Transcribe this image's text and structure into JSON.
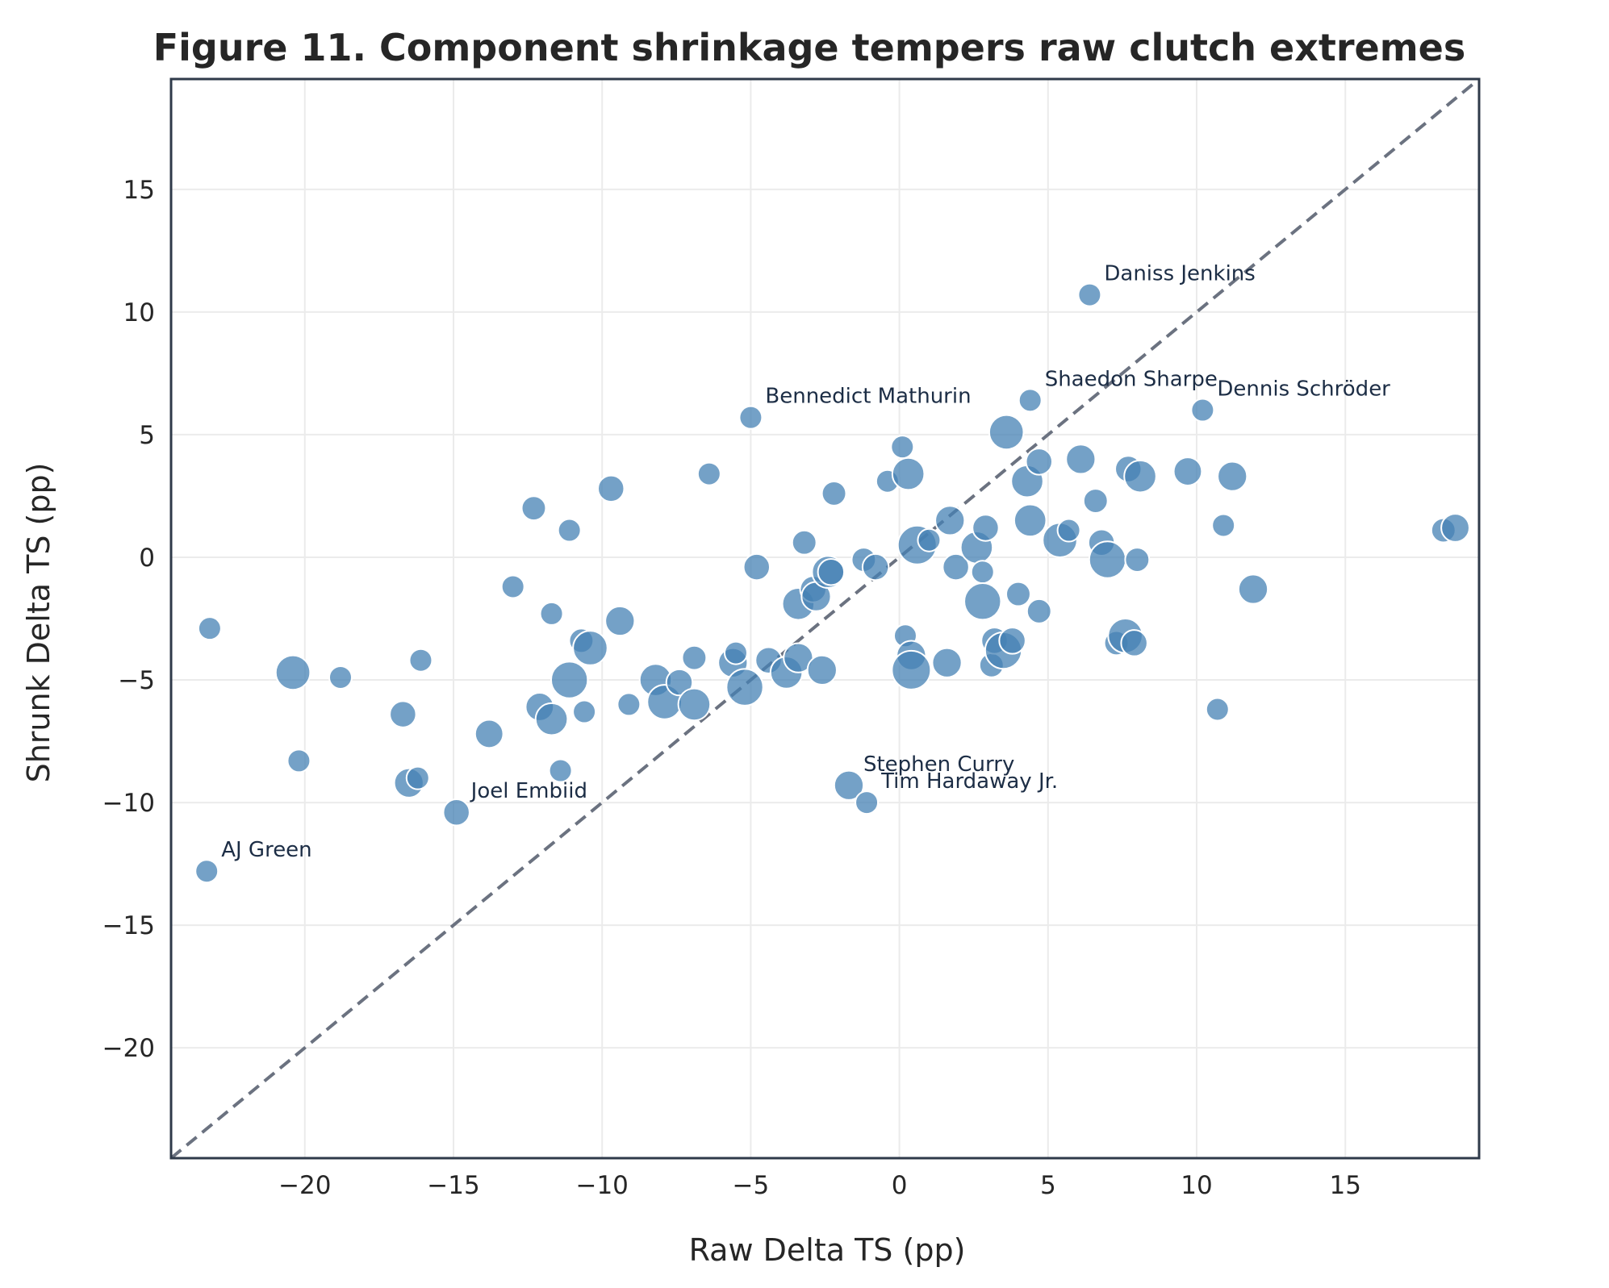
{
  "chart_data": {
    "type": "scatter",
    "title": "Figure 11. Component shrinkage tempers raw clutch extremes",
    "xlabel": "Raw Delta TS (pp)",
    "ylabel": "Shrunk Delta TS (pp)",
    "xlim": [
      -24.5,
      19.5
    ],
    "ylim": [
      -24.5,
      19.5
    ],
    "xticks": [
      -20,
      -15,
      -10,
      -5,
      0,
      5,
      10,
      15
    ],
    "yticks": [
      -20,
      -15,
      -10,
      -5,
      0,
      5,
      10,
      15
    ],
    "grid": true,
    "reference_line": "y = x",
    "points": [
      {
        "x": -23.3,
        "y": -12.8,
        "s": 1,
        "label": "AJ Green"
      },
      {
        "x": -23.2,
        "y": -2.9,
        "s": 1
      },
      {
        "x": -20.4,
        "y": -4.7,
        "s": 3
      },
      {
        "x": -20.2,
        "y": -8.3,
        "s": 1
      },
      {
        "x": -18.8,
        "y": -4.9,
        "s": 1
      },
      {
        "x": -16.7,
        "y": -6.4,
        "s": 1.5
      },
      {
        "x": -16.5,
        "y": -9.2,
        "s": 2
      },
      {
        "x": -16.2,
        "y": -9.0,
        "s": 1
      },
      {
        "x": -16.1,
        "y": -4.2,
        "s": 1
      },
      {
        "x": -14.9,
        "y": -10.4,
        "s": 1.5,
        "label": "Joel Embiid"
      },
      {
        "x": -13.8,
        "y": -7.2,
        "s": 1.8
      },
      {
        "x": -13.0,
        "y": -1.2,
        "s": 1
      },
      {
        "x": -12.3,
        "y": 2.0,
        "s": 1.2
      },
      {
        "x": -12.1,
        "y": -6.1,
        "s": 1.8
      },
      {
        "x": -11.7,
        "y": -6.6,
        "s": 2.5
      },
      {
        "x": -11.7,
        "y": -2.3,
        "s": 1
      },
      {
        "x": -11.4,
        "y": -8.7,
        "s": 1
      },
      {
        "x": -11.1,
        "y": 1.1,
        "s": 1
      },
      {
        "x": -11.1,
        "y": -5.0,
        "s": 3.5
      },
      {
        "x": -10.7,
        "y": -3.4,
        "s": 1.2
      },
      {
        "x": -10.6,
        "y": -6.3,
        "s": 1
      },
      {
        "x": -10.4,
        "y": -3.7,
        "s": 3
      },
      {
        "x": -9.7,
        "y": 2.8,
        "s": 1.5
      },
      {
        "x": -9.4,
        "y": -2.6,
        "s": 2
      },
      {
        "x": -9.1,
        "y": -6.0,
        "s": 1
      },
      {
        "x": -8.2,
        "y": -5.0,
        "s": 2.5
      },
      {
        "x": -7.9,
        "y": -5.9,
        "s": 3
      },
      {
        "x": -7.4,
        "y": -5.1,
        "s": 1.5
      },
      {
        "x": -6.9,
        "y": -6.0,
        "s": 2.5
      },
      {
        "x": -6.9,
        "y": -4.1,
        "s": 1.2
      },
      {
        "x": -6.4,
        "y": 3.4,
        "s": 1
      },
      {
        "x": -5.6,
        "y": -4.3,
        "s": 2
      },
      {
        "x": -5.5,
        "y": -3.9,
        "s": 1
      },
      {
        "x": -5.2,
        "y": -5.3,
        "s": 3.5
      },
      {
        "x": -5.0,
        "y": 5.7,
        "s": 1,
        "label": "Bennedict Mathurin"
      },
      {
        "x": -4.8,
        "y": -0.4,
        "s": 1.5
      },
      {
        "x": -4.4,
        "y": -4.2,
        "s": 1.5
      },
      {
        "x": -3.8,
        "y": -4.7,
        "s": 2.5
      },
      {
        "x": -3.4,
        "y": -1.9,
        "s": 2.5
      },
      {
        "x": -3.4,
        "y": -4.1,
        "s": 2
      },
      {
        "x": -3.2,
        "y": 0.6,
        "s": 1.2
      },
      {
        "x": -2.9,
        "y": -1.3,
        "s": 1.5
      },
      {
        "x": -2.8,
        "y": -1.6,
        "s": 2
      },
      {
        "x": -2.6,
        "y": -4.6,
        "s": 2
      },
      {
        "x": -2.4,
        "y": -0.6,
        "s": 2.5
      },
      {
        "x": -2.3,
        "y": -0.6,
        "s": 1.5
      },
      {
        "x": -2.2,
        "y": 2.6,
        "s": 1.2
      },
      {
        "x": -1.7,
        "y": -9.3,
        "s": 2,
        "label": "Stephen Curry"
      },
      {
        "x": -1.2,
        "y": -0.1,
        "s": 1.2
      },
      {
        "x": -1.1,
        "y": -10.0,
        "s": 1,
        "label": "Tim Hardaway Jr."
      },
      {
        "x": -0.8,
        "y": -0.4,
        "s": 1.5
      },
      {
        "x": -0.4,
        "y": 3.1,
        "s": 1
      },
      {
        "x": 0.1,
        "y": 4.5,
        "s": 1
      },
      {
        "x": 0.2,
        "y": -3.2,
        "s": 1
      },
      {
        "x": 0.3,
        "y": 3.4,
        "s": 2.5
      },
      {
        "x": 0.4,
        "y": -4.0,
        "s": 2
      },
      {
        "x": 0.4,
        "y": -4.6,
        "s": 4
      },
      {
        "x": 0.6,
        "y": 0.5,
        "s": 4
      },
      {
        "x": 1.0,
        "y": 0.7,
        "s": 1
      },
      {
        "x": 1.6,
        "y": -4.3,
        "s": 2
      },
      {
        "x": 1.7,
        "y": 1.5,
        "s": 2
      },
      {
        "x": 1.9,
        "y": -0.4,
        "s": 1.5
      },
      {
        "x": 2.6,
        "y": 0.4,
        "s": 2.5
      },
      {
        "x": 2.8,
        "y": -0.6,
        "s": 1
      },
      {
        "x": 2.8,
        "y": -1.8,
        "s": 3.5
      },
      {
        "x": 2.9,
        "y": 1.2,
        "s": 1.5
      },
      {
        "x": 3.1,
        "y": -4.4,
        "s": 1.2
      },
      {
        "x": 3.2,
        "y": -3.4,
        "s": 1.5
      },
      {
        "x": 3.5,
        "y": -3.8,
        "s": 3.5
      },
      {
        "x": 3.6,
        "y": 5.1,
        "s": 3
      },
      {
        "x": 3.8,
        "y": -3.4,
        "s": 1.5
      },
      {
        "x": 4.0,
        "y": -1.5,
        "s": 1.2
      },
      {
        "x": 4.3,
        "y": 3.1,
        "s": 2.5
      },
      {
        "x": 4.4,
        "y": 6.4,
        "s": 1,
        "label": "Shaedon Sharpe"
      },
      {
        "x": 4.4,
        "y": 1.5,
        "s": 2.5
      },
      {
        "x": 4.7,
        "y": 3.9,
        "s": 1.5
      },
      {
        "x": 4.7,
        "y": -2.2,
        "s": 1.2
      },
      {
        "x": 5.4,
        "y": 0.7,
        "s": 3
      },
      {
        "x": 5.7,
        "y": 1.1,
        "s": 1
      },
      {
        "x": 6.1,
        "y": 4.0,
        "s": 2
      },
      {
        "x": 6.4,
        "y": 10.7,
        "s": 1,
        "label": "Daniss Jenkins"
      },
      {
        "x": 6.6,
        "y": 2.3,
        "s": 1.2
      },
      {
        "x": 6.8,
        "y": 0.6,
        "s": 1.5
      },
      {
        "x": 7.0,
        "y": -0.1,
        "s": 3.5
      },
      {
        "x": 7.3,
        "y": -3.5,
        "s": 1.2
      },
      {
        "x": 7.6,
        "y": -3.2,
        "s": 3
      },
      {
        "x": 7.7,
        "y": 3.6,
        "s": 1.5
      },
      {
        "x": 7.9,
        "y": -3.5,
        "s": 1.5
      },
      {
        "x": 8.0,
        "y": -0.1,
        "s": 1.2
      },
      {
        "x": 8.1,
        "y": 3.3,
        "s": 2.5
      },
      {
        "x": 9.7,
        "y": 3.5,
        "s": 1.8
      },
      {
        "x": 10.2,
        "y": 6.0,
        "s": 1,
        "label": "Dennis Schröder"
      },
      {
        "x": 10.7,
        "y": -6.2,
        "s": 1
      },
      {
        "x": 10.9,
        "y": 1.3,
        "s": 1
      },
      {
        "x": 11.2,
        "y": 3.3,
        "s": 2
      },
      {
        "x": 11.9,
        "y": -1.3,
        "s": 2
      },
      {
        "x": 18.3,
        "y": 1.1,
        "s": 1.2
      },
      {
        "x": 18.7,
        "y": 1.2,
        "s": 1.8
      }
    ]
  }
}
